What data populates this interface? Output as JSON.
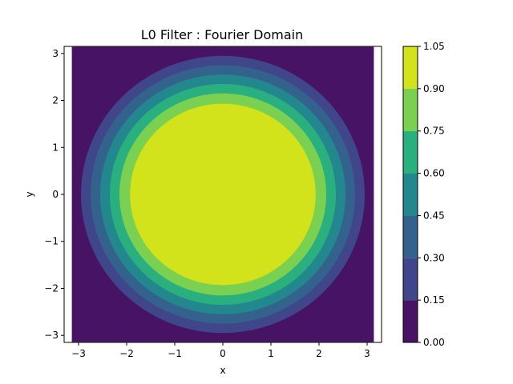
{
  "chart_data": {
    "type": "contourf",
    "title": "L0 Filter : Fourier Domain",
    "xlabel": "x",
    "ylabel": "y",
    "xlim": [
      -3.3,
      3.3
    ],
    "ylim": [
      -3.15,
      3.15
    ],
    "data_extent": {
      "x": [
        -3.14,
        3.14
      ],
      "y": [
        -3.14,
        3.14
      ]
    },
    "x_ticks": [
      -3,
      -2,
      -1,
      0,
      1,
      2,
      3
    ],
    "y_ticks": [
      -3,
      -2,
      -1,
      0,
      1,
      2,
      3
    ],
    "x_tick_labels": [
      "−3",
      "−2",
      "−1",
      "0",
      "1",
      "2",
      "3"
    ],
    "y_tick_labels": [
      "−3",
      "−2",
      "−1",
      "0",
      "1",
      "2",
      "3"
    ],
    "contour_levels": [
      {
        "range": [
          0.0,
          0.15
        ],
        "color": "#471365",
        "outer_radius": 3.14
      },
      {
        "range": [
          0.15,
          0.3
        ],
        "color": "#40468a",
        "outer_radius": 2.95
      },
      {
        "range": [
          0.3,
          0.45
        ],
        "color": "#33638d",
        "outer_radius": 2.75
      },
      {
        "range": [
          0.45,
          0.6
        ],
        "color": "#23888e",
        "outer_radius": 2.55
      },
      {
        "range": [
          0.6,
          0.75
        ],
        "color": "#2ab07f",
        "outer_radius": 2.35
      },
      {
        "range": [
          0.75,
          0.9
        ],
        "color": "#7ad151",
        "outer_radius": 2.15
      },
      {
        "range": [
          0.9,
          1.05
        ],
        "color": "#d2e21b",
        "outer_radius": 1.93
      }
    ],
    "colorbar": {
      "ticks": [
        0.0,
        0.15,
        0.3,
        0.45,
        0.6,
        0.75,
        0.9,
        1.05
      ],
      "tick_labels": [
        "0.00",
        "0.15",
        "0.30",
        "0.45",
        "0.60",
        "0.75",
        "0.90",
        "1.05"
      ],
      "range": [
        0.0,
        1.05
      ]
    }
  }
}
